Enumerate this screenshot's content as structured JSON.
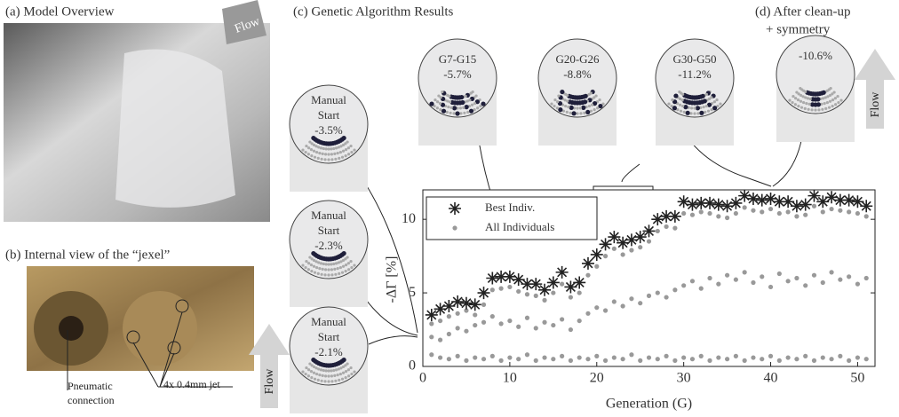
{
  "panels": {
    "a": "(a) Model Overview",
    "b": "(b) Internal view of the “jexel”",
    "c": "(c) Genetic Algorithm Results",
    "d": [
      "(d) After clean-up",
      "+ symmetry"
    ]
  },
  "annotations": {
    "flow": "Flow",
    "pneumatic": [
      "Pneumatic",
      "connection"
    ],
    "jets": "4x 0.4mm jet"
  },
  "insets": [
    [
      "Manual",
      "Start",
      "-3.5%"
    ],
    [
      "Manual",
      "Start",
      "-2.3%"
    ],
    [
      "Manual",
      "Start",
      "-2.1%"
    ],
    [
      "G7-G15",
      "-5.7%"
    ],
    [
      "G20-G26",
      "-8.8%"
    ],
    [
      "G30-G50",
      "-11.2%"
    ],
    [
      "-10.6%"
    ]
  ],
  "chart_data": {
    "type": "scatter",
    "xlabel": "Generation (G)",
    "ylabel": "-ΔΓ [%]",
    "xlim": [
      0,
      52
    ],
    "ylim": [
      0,
      12
    ],
    "xticks": [
      0,
      10,
      20,
      30,
      40,
      50
    ],
    "yticks": [
      0,
      5,
      10
    ],
    "legend": "upper left",
    "series": [
      {
        "name": "Best Indiv.",
        "color": "#222222",
        "marker": "star",
        "x": [
          1,
          2,
          3,
          4,
          5,
          6,
          7,
          8,
          9,
          10,
          11,
          12,
          13,
          14,
          15,
          16,
          17,
          18,
          19,
          20,
          21,
          22,
          23,
          24,
          25,
          26,
          27,
          28,
          29,
          30,
          31,
          32,
          33,
          34,
          35,
          36,
          37,
          38,
          39,
          40,
          41,
          42,
          43,
          44,
          45,
          46,
          47,
          48,
          49,
          50,
          51
        ],
        "values": [
          3.5,
          3.9,
          4.1,
          4.4,
          4.3,
          4.2,
          5.0,
          6.0,
          6.1,
          6.1,
          5.9,
          5.6,
          5.6,
          5.2,
          5.7,
          6.4,
          5.4,
          5.7,
          7.0,
          7.6,
          8.3,
          8.8,
          8.4,
          8.6,
          8.8,
          9.2,
          10.0,
          10.2,
          10.2,
          11.2,
          11.0,
          11.1,
          11.1,
          11.0,
          10.9,
          11.1,
          11.6,
          11.4,
          11.3,
          11.4,
          11.2,
          11.2,
          10.9,
          11.0,
          11.6,
          11.2,
          11.5,
          11.3,
          11.3,
          11.2,
          10.9
        ]
      },
      {
        "name": "All Individuals",
        "color": "#999999",
        "marker": "dot",
        "x": [
          1,
          1,
          1,
          2,
          2,
          2,
          3,
          3,
          3,
          4,
          4,
          4,
          5,
          5,
          5,
          6,
          6,
          6,
          7,
          7,
          7,
          8,
          8,
          8,
          9,
          9,
          9,
          10,
          10,
          10,
          11,
          11,
          11,
          12,
          12,
          12,
          13,
          13,
          13,
          14,
          14,
          14,
          15,
          15,
          15,
          16,
          16,
          16,
          17,
          17,
          17,
          18,
          18,
          18,
          19,
          19,
          19,
          20,
          20,
          20,
          21,
          21,
          21,
          22,
          22,
          22,
          23,
          23,
          23,
          24,
          24,
          24,
          25,
          25,
          25,
          26,
          26,
          26,
          27,
          27,
          27,
          28,
          28,
          28,
          29,
          29,
          29,
          30,
          30,
          30,
          31,
          31,
          31,
          32,
          32,
          32,
          33,
          33,
          33,
          34,
          34,
          34,
          35,
          35,
          35,
          36,
          36,
          36,
          37,
          37,
          37,
          38,
          38,
          38,
          39,
          39,
          39,
          40,
          40,
          40,
          41,
          41,
          41,
          42,
          42,
          42,
          43,
          43,
          43,
          44,
          44,
          44,
          45,
          45,
          45,
          46,
          46,
          46,
          47,
          47,
          47,
          48,
          48,
          48,
          49,
          49,
          49,
          50,
          50,
          50,
          51,
          51,
          51
        ],
        "values": [
          0.8,
          2.0,
          2.9,
          0.6,
          1.8,
          3.1,
          0.5,
          2.2,
          3.4,
          0.7,
          2.6,
          3.6,
          0.4,
          2.4,
          3.8,
          0.6,
          2.8,
          3.5,
          0.5,
          3.0,
          4.2,
          0.7,
          3.4,
          5.2,
          0.4,
          2.9,
          5.3,
          0.6,
          3.1,
          5.4,
          0.5,
          2.7,
          5.1,
          0.8,
          3.3,
          4.9,
          0.4,
          2.6,
          4.8,
          0.6,
          3.0,
          4.5,
          0.5,
          2.8,
          5.0,
          0.7,
          3.2,
          5.6,
          0.4,
          2.5,
          4.7,
          0.6,
          3.1,
          5.0,
          0.5,
          3.6,
          6.2,
          0.7,
          4.0,
          6.8,
          0.4,
          3.8,
          7.5,
          0.6,
          4.4,
          8.0,
          0.5,
          4.1,
          7.6,
          0.8,
          4.6,
          7.9,
          0.4,
          4.3,
          8.1,
          0.6,
          4.8,
          8.5,
          0.5,
          5.0,
          9.2,
          0.7,
          4.7,
          9.5,
          0.4,
          5.2,
          9.4,
          0.6,
          5.5,
          10.4,
          0.5,
          5.8,
          10.3,
          0.7,
          5.3,
          10.5,
          0.4,
          6.0,
          10.4,
          0.6,
          5.6,
          10.2,
          0.5,
          6.2,
          10.1,
          0.7,
          5.9,
          10.4,
          0.4,
          6.4,
          10.8,
          0.6,
          5.7,
          10.6,
          0.5,
          6.1,
          10.5,
          0.7,
          5.4,
          10.7,
          0.4,
          6.3,
          10.4,
          0.6,
          5.8,
          10.5,
          0.5,
          6.0,
          10.2,
          0.7,
          5.5,
          10.3,
          0.4,
          6.2,
          10.9,
          0.6,
          5.7,
          10.5,
          0.5,
          6.4,
          10.7,
          0.7,
          5.9,
          10.6,
          0.4,
          6.1,
          10.5,
          0.6,
          5.6,
          10.4,
          0.5,
          6.0,
          10.2
        ]
      }
    ]
  }
}
